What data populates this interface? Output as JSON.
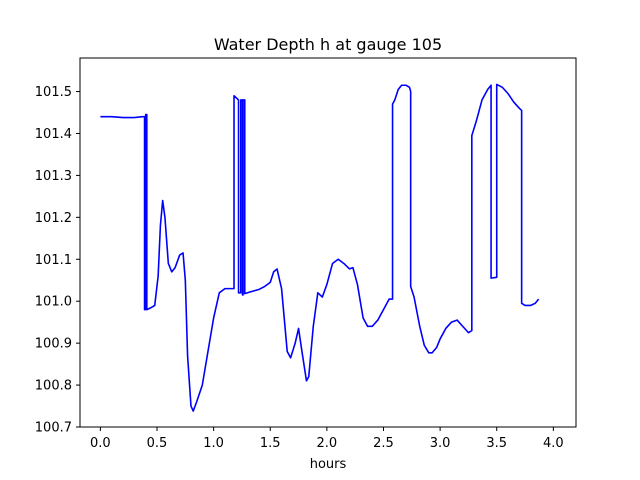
{
  "chart_data": {
    "type": "line",
    "title": "Water Depth h at gauge 105",
    "xlabel": "hours",
    "ylabel": "",
    "xlim": [
      -0.18,
      4.2
    ],
    "ylim": [
      100.7,
      101.58
    ],
    "x_ticks": [
      0.0,
      0.5,
      1.0,
      1.5,
      2.0,
      2.5,
      3.0,
      3.5,
      4.0
    ],
    "x_tick_labels": [
      "0.0",
      "0.5",
      "1.0",
      "1.5",
      "2.0",
      "2.5",
      "3.0",
      "3.5",
      "4.0"
    ],
    "y_ticks": [
      100.7,
      100.8,
      100.9,
      101.0,
      101.1,
      101.2,
      101.3,
      101.4,
      101.5
    ],
    "y_tick_labels": [
      "100.7",
      "100.8",
      "100.9",
      "101.0",
      "101.1",
      "101.2",
      "101.3",
      "101.4",
      "101.5"
    ],
    "grid": false,
    "colors": {
      "line": "#0000ff",
      "axes": "#000000",
      "background": "#ffffff"
    },
    "series": [
      {
        "points": [
          [
            0.0,
            101.44
          ],
          [
            0.1,
            101.44
          ],
          [
            0.2,
            101.438
          ],
          [
            0.3,
            101.438
          ],
          [
            0.37,
            101.44
          ],
          [
            0.39,
            101.44
          ],
          [
            0.39,
            100.98
          ],
          [
            0.4,
            100.98
          ],
          [
            0.4,
            101.445
          ],
          [
            0.41,
            101.445
          ],
          [
            0.41,
            100.98
          ],
          [
            0.45,
            100.985
          ],
          [
            0.48,
            100.99
          ],
          [
            0.51,
            101.06
          ],
          [
            0.53,
            101.18
          ],
          [
            0.55,
            101.24
          ],
          [
            0.57,
            101.2
          ],
          [
            0.6,
            101.09
          ],
          [
            0.63,
            101.07
          ],
          [
            0.66,
            101.08
          ],
          [
            0.7,
            101.11
          ],
          [
            0.73,
            101.115
          ],
          [
            0.75,
            101.05
          ],
          [
            0.77,
            100.87
          ],
          [
            0.8,
            100.75
          ],
          [
            0.82,
            100.738
          ],
          [
            0.85,
            100.76
          ],
          [
            0.9,
            100.8
          ],
          [
            0.95,
            100.88
          ],
          [
            1.0,
            100.96
          ],
          [
            1.05,
            101.02
          ],
          [
            1.1,
            101.03
          ],
          [
            1.18,
            101.03
          ],
          [
            1.18,
            101.49
          ],
          [
            1.22,
            101.48
          ],
          [
            1.22,
            101.02
          ],
          [
            1.24,
            101.02
          ],
          [
            1.24,
            101.48
          ],
          [
            1.255,
            101.48
          ],
          [
            1.255,
            101.015
          ],
          [
            1.26,
            101.015
          ],
          [
            1.26,
            101.48
          ],
          [
            1.275,
            101.48
          ],
          [
            1.275,
            101.018
          ],
          [
            1.32,
            101.022
          ],
          [
            1.4,
            101.028
          ],
          [
            1.45,
            101.035
          ],
          [
            1.5,
            101.045
          ],
          [
            1.53,
            101.07
          ],
          [
            1.56,
            101.077
          ],
          [
            1.6,
            101.03
          ],
          [
            1.65,
            100.88
          ],
          [
            1.68,
            100.865
          ],
          [
            1.72,
            100.9
          ],
          [
            1.75,
            100.935
          ],
          [
            1.78,
            100.88
          ],
          [
            1.82,
            100.81
          ],
          [
            1.84,
            100.82
          ],
          [
            1.88,
            100.94
          ],
          [
            1.92,
            101.02
          ],
          [
            1.96,
            101.01
          ],
          [
            2.0,
            101.04
          ],
          [
            2.05,
            101.09
          ],
          [
            2.1,
            101.1
          ],
          [
            2.15,
            101.09
          ],
          [
            2.2,
            101.077
          ],
          [
            2.23,
            101.08
          ],
          [
            2.27,
            101.04
          ],
          [
            2.32,
            100.96
          ],
          [
            2.36,
            100.94
          ],
          [
            2.4,
            100.94
          ],
          [
            2.45,
            100.955
          ],
          [
            2.5,
            100.98
          ],
          [
            2.55,
            101.005
          ],
          [
            2.58,
            101.005
          ],
          [
            2.58,
            101.47
          ],
          [
            2.6,
            101.48
          ],
          [
            2.63,
            101.505
          ],
          [
            2.66,
            101.515
          ],
          [
            2.7,
            101.515
          ],
          [
            2.73,
            101.51
          ],
          [
            2.74,
            101.5
          ],
          [
            2.74,
            101.035
          ],
          [
            2.77,
            101.01
          ],
          [
            2.82,
            100.94
          ],
          [
            2.86,
            100.895
          ],
          [
            2.9,
            100.877
          ],
          [
            2.93,
            100.877
          ],
          [
            2.97,
            100.89
          ],
          [
            3.0,
            100.91
          ],
          [
            3.05,
            100.935
          ],
          [
            3.1,
            100.95
          ],
          [
            3.15,
            100.955
          ],
          [
            3.2,
            100.94
          ],
          [
            3.25,
            100.925
          ],
          [
            3.28,
            100.93
          ],
          [
            3.28,
            101.395
          ],
          [
            3.32,
            101.43
          ],
          [
            3.37,
            101.48
          ],
          [
            3.42,
            101.505
          ],
          [
            3.45,
            101.515
          ],
          [
            3.45,
            101.055
          ],
          [
            3.5,
            101.057
          ],
          [
            3.5,
            101.517
          ],
          [
            3.55,
            101.51
          ],
          [
            3.6,
            101.495
          ],
          [
            3.65,
            101.475
          ],
          [
            3.7,
            101.46
          ],
          [
            3.72,
            101.455
          ],
          [
            3.72,
            100.995
          ],
          [
            3.75,
            100.99
          ],
          [
            3.8,
            100.99
          ],
          [
            3.84,
            100.995
          ],
          [
            3.87,
            101.005
          ]
        ]
      }
    ]
  }
}
